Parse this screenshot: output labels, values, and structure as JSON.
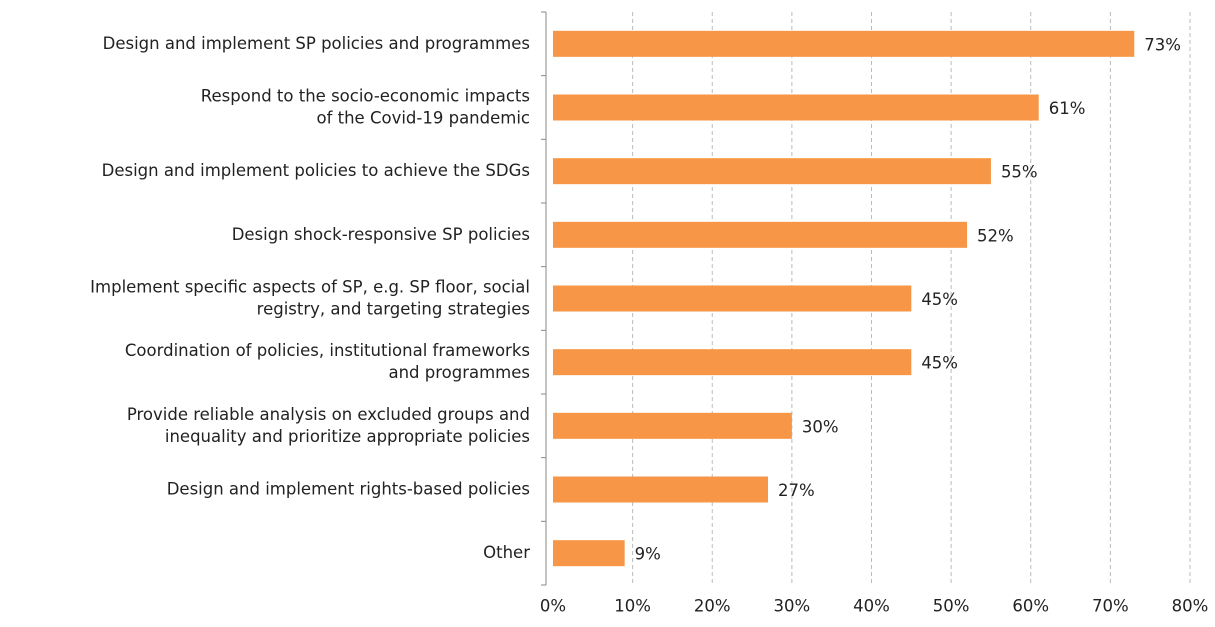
{
  "chart_data": {
    "type": "bar",
    "orientation": "horizontal",
    "categories": [
      "Design and implement SP policies and programmes",
      "Respond to the socio-economic impacts\nof the Covid-19 pandemic",
      "Design and implement policies to achieve the SDGs",
      "Design shock-responsive SP policies",
      "Implement specific aspects of SP, e.g. SP floor, social\nregistry, and targeting strategies",
      "Coordination of policies, institutional frameworks\nand programmes",
      "Provide reliable analysis on excluded groups and\ninequality and prioritize appropriate policies",
      "Design and implement rights-based policies",
      "Other"
    ],
    "values": [
      73,
      61,
      55,
      52,
      45,
      45,
      30,
      27,
      9
    ],
    "value_labels": [
      "73%",
      "61%",
      "55%",
      "52%",
      "45%",
      "45%",
      "30%",
      "27%",
      "9%"
    ],
    "color": "#f79646",
    "xlim": [
      0,
      80
    ],
    "xticks": [
      {
        "value": 0,
        "label": "0%"
      },
      {
        "value": 10,
        "label": "10%"
      },
      {
        "value": 20,
        "label": "20%"
      },
      {
        "value": 30,
        "label": "30%"
      },
      {
        "value": 40,
        "label": "40%"
      },
      {
        "value": 50,
        "label": "50%"
      },
      {
        "value": 60,
        "label": "60%"
      },
      {
        "value": 70,
        "label": "70%"
      },
      {
        "value": 80,
        "label": "80%"
      }
    ],
    "grid": true
  }
}
